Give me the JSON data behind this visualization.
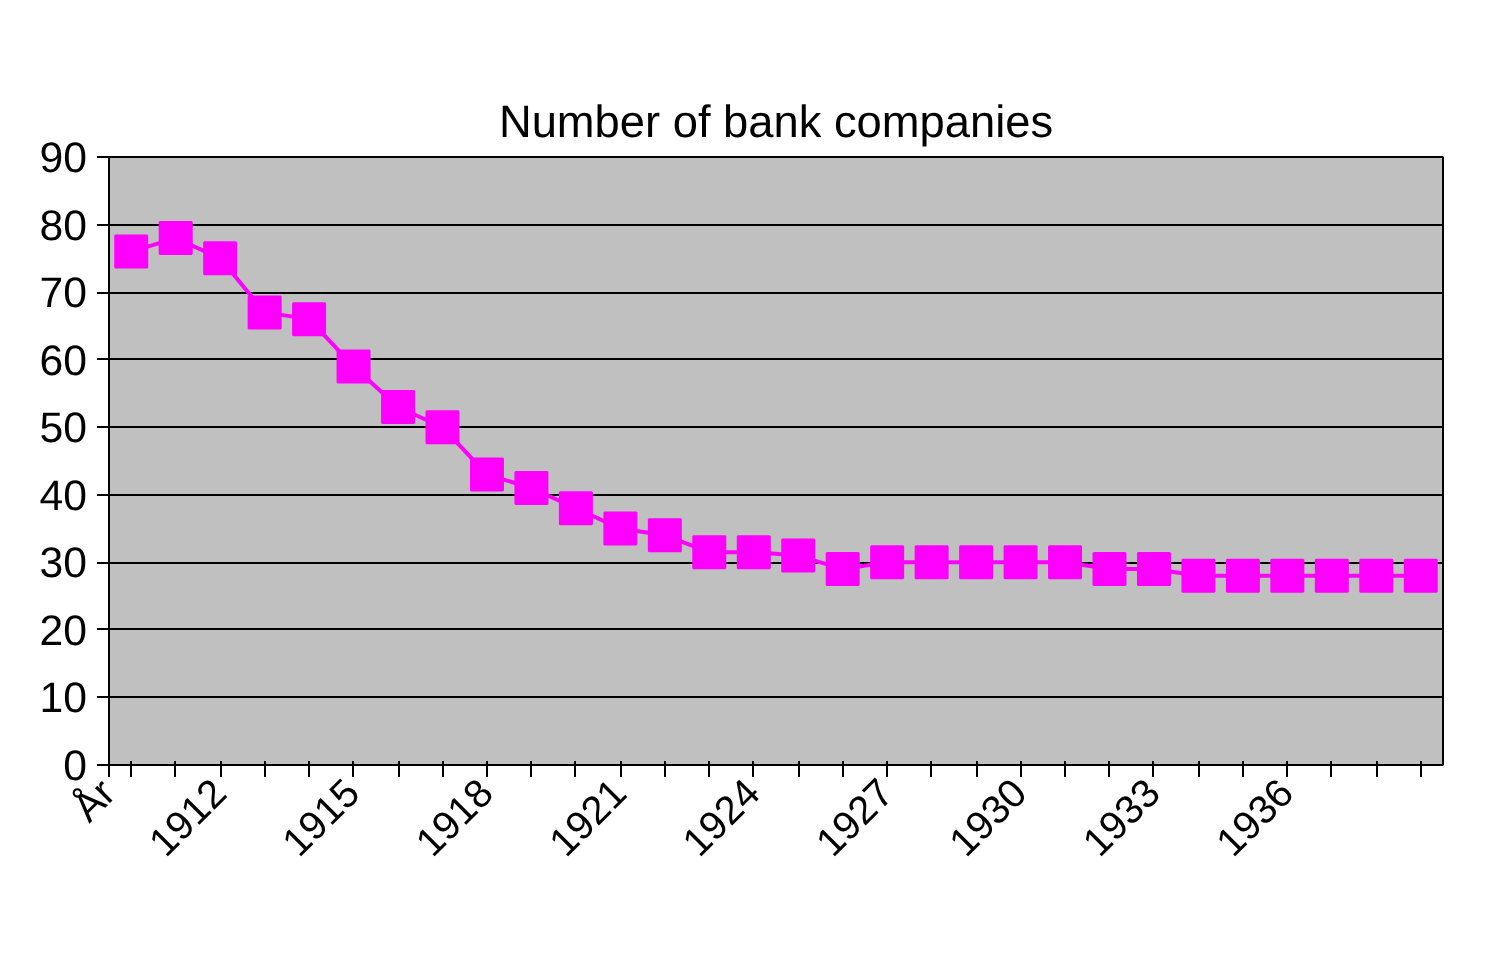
{
  "chart_data": {
    "type": "line",
    "title": "Number of bank companies",
    "xlabel": "År",
    "categories": [
      null,
      null,
      "1912",
      null,
      null,
      "1915",
      null,
      null,
      "1918",
      null,
      null,
      "1921",
      null,
      null,
      "1924",
      null,
      null,
      "1927",
      null,
      null,
      "1930",
      null,
      null,
      "1933",
      null,
      null,
      "1936",
      null,
      null,
      null
    ],
    "series": [
      {
        "color": "#ff00ff",
        "values": [
          76,
          78,
          75,
          67,
          66,
          59,
          53,
          50,
          43,
          41,
          38,
          35,
          34,
          31.5,
          31.5,
          31,
          29,
          30,
          30,
          30,
          30,
          30,
          29,
          29,
          28,
          28,
          28,
          28,
          28,
          28
        ]
      }
    ],
    "ylim": [
      0,
      90
    ],
    "yticks": [
      0,
      10,
      20,
      30,
      40,
      50,
      60,
      70,
      80,
      90
    ],
    "grid": "y",
    "marker": "square",
    "line_style": "solid"
  }
}
